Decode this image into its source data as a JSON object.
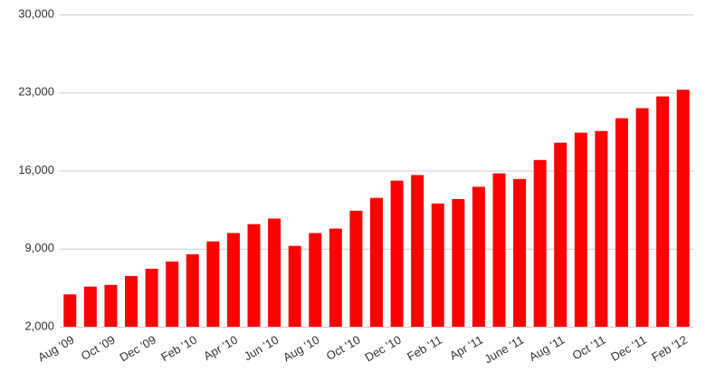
{
  "chart_data": {
    "type": "bar",
    "categories": [
      "Aug '09",
      null,
      "Oct '09",
      null,
      "Dec '09",
      null,
      "Feb '10",
      null,
      "Apr '10",
      null,
      "Jun '10",
      null,
      "Aug '10",
      null,
      "Oct '10",
      null,
      "Dec '10",
      null,
      "Feb '11",
      null,
      "Apr '11",
      null,
      "June '11",
      null,
      "Aug '11",
      null,
      "Oct '11",
      null,
      "Dec '11",
      null,
      "Feb '12"
    ],
    "values": [
      4900,
      5600,
      5750,
      6550,
      7200,
      7850,
      8500,
      9650,
      10400,
      11200,
      11700,
      9250,
      10400,
      10800,
      12400,
      13550,
      15100,
      15600,
      13050,
      13450,
      14550,
      15750,
      15250,
      16950,
      18500,
      19400,
      19550,
      20700,
      21600,
      22650,
      23250
    ],
    "color": "#ff0000",
    "ylim": [
      2000,
      30000
    ],
    "yticks": [
      {
        "value": 2000,
        "label": "2,000"
      },
      {
        "value": 9000,
        "label": "9,000"
      },
      {
        "value": 16000,
        "label": "16,000"
      },
      {
        "value": 23000,
        "label": "23,000"
      },
      {
        "value": 30000,
        "label": "30,000"
      }
    ],
    "grid": true
  }
}
